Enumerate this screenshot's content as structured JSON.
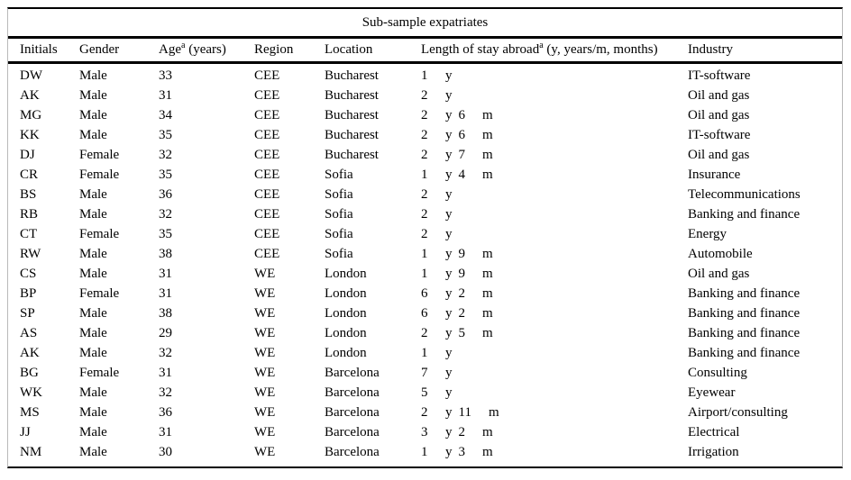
{
  "title": "Sub-sample expatriates",
  "header": {
    "initials": "Initials",
    "gender": "Gender",
    "age_pre": "Age",
    "age_sup": "a",
    "age_post": " (years)",
    "region": "Region",
    "location": "Location",
    "stay_pre": "Length of stay abroad",
    "stay_sup": "a",
    "stay_post": " (y, years/m, months)",
    "industry": "Industry"
  },
  "units": {
    "year": "y",
    "month": "m"
  },
  "rows": [
    {
      "initials": "DW",
      "gender": "Male",
      "age": "33",
      "region": "CEE",
      "location": "Bucharest",
      "stay_years": "1",
      "stay_months": "",
      "industry": "IT-software"
    },
    {
      "initials": "AK",
      "gender": "Male",
      "age": "31",
      "region": "CEE",
      "location": "Bucharest",
      "stay_years": "2",
      "stay_months": "",
      "industry": "Oil and gas"
    },
    {
      "initials": "MG",
      "gender": "Male",
      "age": "34",
      "region": "CEE",
      "location": "Bucharest",
      "stay_years": "2",
      "stay_months": "6",
      "industry": "Oil and gas"
    },
    {
      "initials": "KK",
      "gender": "Male",
      "age": "35",
      "region": "CEE",
      "location": "Bucharest",
      "stay_years": "2",
      "stay_months": "6",
      "industry": "IT-software"
    },
    {
      "initials": "DJ",
      "gender": "Female",
      "age": "32",
      "region": "CEE",
      "location": "Bucharest",
      "stay_years": "2",
      "stay_months": "7",
      "industry": "Oil and gas"
    },
    {
      "initials": "CR",
      "gender": "Female",
      "age": "35",
      "region": "CEE",
      "location": "Sofia",
      "stay_years": "1",
      "stay_months": "4",
      "industry": "Insurance"
    },
    {
      "initials": "BS",
      "gender": "Male",
      "age": "36",
      "region": "CEE",
      "location": "Sofia",
      "stay_years": "2",
      "stay_months": "",
      "industry": "Telecommunications"
    },
    {
      "initials": "RB",
      "gender": "Male",
      "age": "32",
      "region": "CEE",
      "location": "Sofia",
      "stay_years": "2",
      "stay_months": "",
      "industry": "Banking and finance"
    },
    {
      "initials": "CT",
      "gender": "Female",
      "age": "35",
      "region": "CEE",
      "location": "Sofia",
      "stay_years": "2",
      "stay_months": "",
      "industry": "Energy"
    },
    {
      "initials": "RW",
      "gender": "Male",
      "age": "38",
      "region": "CEE",
      "location": "Sofia",
      "stay_years": "1",
      "stay_months": "9",
      "industry": "Automobile"
    },
    {
      "initials": "CS",
      "gender": "Male",
      "age": "31",
      "region": "WE",
      "location": "London",
      "stay_years": "1",
      "stay_months": "9",
      "industry": "Oil and gas"
    },
    {
      "initials": "BP",
      "gender": "Female",
      "age": "31",
      "region": "WE",
      "location": "London",
      "stay_years": "6",
      "stay_months": "2",
      "industry": "Banking and finance"
    },
    {
      "initials": "SP",
      "gender": "Male",
      "age": "38",
      "region": "WE",
      "location": "London",
      "stay_years": "6",
      "stay_months": "2",
      "industry": "Banking and finance"
    },
    {
      "initials": "AS",
      "gender": "Male",
      "age": "29",
      "region": "WE",
      "location": "London",
      "stay_years": "2",
      "stay_months": "5",
      "industry": "Banking and finance"
    },
    {
      "initials": "AK",
      "gender": "Male",
      "age": "32",
      "region": "WE",
      "location": "London",
      "stay_years": "1",
      "stay_months": "",
      "industry": "Banking and finance"
    },
    {
      "initials": "BG",
      "gender": "Female",
      "age": "31",
      "region": "WE",
      "location": "Barcelona",
      "stay_years": "7",
      "stay_months": "",
      "industry": "Consulting"
    },
    {
      "initials": "WK",
      "gender": "Male",
      "age": "32",
      "region": "WE",
      "location": "Barcelona",
      "stay_years": "5",
      "stay_months": "",
      "industry": "Eyewear"
    },
    {
      "initials": "MS",
      "gender": "Male",
      "age": "36",
      "region": "WE",
      "location": "Barcelona",
      "stay_years": "2",
      "stay_months": "11",
      "industry": "Airport/consulting"
    },
    {
      "initials": "JJ",
      "gender": "Male",
      "age": "31",
      "region": "WE",
      "location": "Barcelona",
      "stay_years": "3",
      "stay_months": "2",
      "industry": "Electrical"
    },
    {
      "initials": "NM",
      "gender": "Male",
      "age": "30",
      "region": "WE",
      "location": "Barcelona",
      "stay_years": "1",
      "stay_months": "3",
      "industry": "Irrigation"
    }
  ]
}
